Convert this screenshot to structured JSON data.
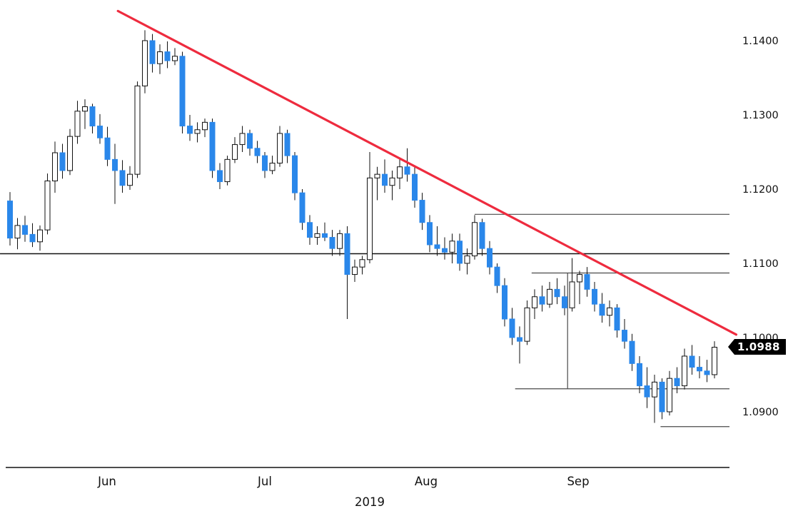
{
  "chart_data": {
    "type": "candlestick",
    "grid": false,
    "legend": false,
    "x_axis": {
      "year_label": "2019",
      "month_ticks": [
        {
          "label": "Jun",
          "index": 13
        },
        {
          "label": "Jul",
          "index": 34
        },
        {
          "label": "Aug",
          "index": 55.5
        },
        {
          "label": "Sep",
          "index": 75.8
        }
      ]
    },
    "y_axis": {
      "tick_labels": [
        "1.1400",
        "1.1300",
        "1.1200",
        "1.1100",
        "1.1000",
        "1.0900"
      ],
      "tick_prices": [
        1.14,
        1.13,
        1.12,
        1.11,
        1.1,
        1.09
      ],
      "range": [
        1.0845,
        1.1455
      ],
      "side": "right"
    },
    "last_price_tag": {
      "text": "1.0988",
      "price": 1.0988
    },
    "candles": {
      "format": [
        "open",
        "high",
        "low",
        "close"
      ],
      "ohlc": [
        [
          1.1185,
          1.1197,
          1.1125,
          1.1135
        ],
        [
          1.1135,
          1.1162,
          1.112,
          1.1152
        ],
        [
          1.1152,
          1.1165,
          1.113,
          1.114
        ],
        [
          1.114,
          1.1155,
          1.1123,
          1.113
        ],
        [
          1.113,
          1.1152,
          1.1118,
          1.1146
        ],
        [
          1.1146,
          1.1222,
          1.114,
          1.1212
        ],
        [
          1.1212,
          1.1265,
          1.1196,
          1.125
        ],
        [
          1.125,
          1.1262,
          1.1215,
          1.1226
        ],
        [
          1.1226,
          1.1282,
          1.122,
          1.1272
        ],
        [
          1.1272,
          1.132,
          1.1262,
          1.1306
        ],
        [
          1.1306,
          1.1322,
          1.1282,
          1.1312
        ],
        [
          1.1312,
          1.1316,
          1.1276,
          1.1286
        ],
        [
          1.1286,
          1.1302,
          1.1262,
          1.127
        ],
        [
          1.127,
          1.1285,
          1.1232,
          1.1241
        ],
        [
          1.1241,
          1.1262,
          1.1181,
          1.1226
        ],
        [
          1.1226,
          1.124,
          1.1196,
          1.1206
        ],
        [
          1.1206,
          1.1232,
          1.12,
          1.1221
        ],
        [
          1.1221,
          1.1346,
          1.1216,
          1.134
        ],
        [
          1.134,
          1.1415,
          1.133,
          1.1401
        ],
        [
          1.1401,
          1.141,
          1.1358,
          1.137
        ],
        [
          1.137,
          1.1396,
          1.1356,
          1.1386
        ],
        [
          1.1386,
          1.14,
          1.1364,
          1.1374
        ],
        [
          1.1374,
          1.1391,
          1.1368,
          1.138
        ],
        [
          1.138,
          1.1386,
          1.1276,
          1.1286
        ],
        [
          1.1286,
          1.1301,
          1.1266,
          1.1276
        ],
        [
          1.1276,
          1.1291,
          1.1264,
          1.1281
        ],
        [
          1.1281,
          1.1296,
          1.1271,
          1.1291
        ],
        [
          1.1291,
          1.1296,
          1.1216,
          1.1226
        ],
        [
          1.1226,
          1.1236,
          1.1201,
          1.1211
        ],
        [
          1.1211,
          1.1246,
          1.1206,
          1.1241
        ],
        [
          1.1241,
          1.1271,
          1.1236,
          1.1261
        ],
        [
          1.1261,
          1.1286,
          1.1251,
          1.1276
        ],
        [
          1.1276,
          1.1281,
          1.1246,
          1.1256
        ],
        [
          1.1256,
          1.1266,
          1.1236,
          1.1246
        ],
        [
          1.1246,
          1.1251,
          1.1216,
          1.1226
        ],
        [
          1.1226,
          1.1246,
          1.1221,
          1.1236
        ],
        [
          1.1236,
          1.1286,
          1.1231,
          1.1276
        ],
        [
          1.1276,
          1.1281,
          1.1236,
          1.1246
        ],
        [
          1.1246,
          1.1251,
          1.1186,
          1.1196
        ],
        [
          1.1196,
          1.1201,
          1.1146,
          1.1156
        ],
        [
          1.1156,
          1.1166,
          1.1126,
          1.1136
        ],
        [
          1.1136,
          1.1151,
          1.1126,
          1.1141
        ],
        [
          1.1141,
          1.1156,
          1.1131,
          1.1136
        ],
        [
          1.1136,
          1.1146,
          1.1111,
          1.1121
        ],
        [
          1.1121,
          1.1146,
          1.1111,
          1.1141
        ],
        [
          1.1141,
          1.1151,
          1.1026,
          1.1086
        ],
        [
          1.1086,
          1.1106,
          1.1076,
          1.1096
        ],
        [
          1.1096,
          1.1111,
          1.1086,
          1.1106
        ],
        [
          1.1106,
          1.1251,
          1.1101,
          1.1216
        ],
        [
          1.1216,
          1.1231,
          1.1186,
          1.1221
        ],
        [
          1.1221,
          1.1241,
          1.1196,
          1.1206
        ],
        [
          1.1206,
          1.1226,
          1.1186,
          1.1216
        ],
        [
          1.1216,
          1.1241,
          1.1201,
          1.1231
        ],
        [
          1.1231,
          1.1256,
          1.1211,
          1.1221
        ],
        [
          1.1221,
          1.1231,
          1.1176,
          1.1186
        ],
        [
          1.1186,
          1.1196,
          1.1146,
          1.1156
        ],
        [
          1.1156,
          1.1166,
          1.1116,
          1.1126
        ],
        [
          1.1126,
          1.1151,
          1.1111,
          1.1121
        ],
        [
          1.1121,
          1.1136,
          1.1106,
          1.1116
        ],
        [
          1.1116,
          1.1141,
          1.1101,
          1.1131
        ],
        [
          1.1131,
          1.1141,
          1.1091,
          1.1101
        ],
        [
          1.1101,
          1.1121,
          1.1086,
          1.1111
        ],
        [
          1.1111,
          1.1166,
          1.1106,
          1.1156
        ],
        [
          1.1156,
          1.1161,
          1.1111,
          1.1121
        ],
        [
          1.1121,
          1.1131,
          1.1086,
          1.1096
        ],
        [
          1.1096,
          1.1101,
          1.1061,
          1.1071
        ],
        [
          1.1071,
          1.1081,
          1.1016,
          1.1026
        ],
        [
          1.1026,
          1.1041,
          1.0991,
          1.1001
        ],
        [
          1.1001,
          1.1016,
          1.0966,
          1.0996
        ],
        [
          1.0996,
          1.1051,
          1.0991,
          1.1041
        ],
        [
          1.1041,
          1.1066,
          1.1026,
          1.1056
        ],
        [
          1.1056,
          1.1071,
          1.1036,
          1.1046
        ],
        [
          1.1046,
          1.1076,
          1.1041,
          1.1066
        ],
        [
          1.1066,
          1.1081,
          1.1046,
          1.1056
        ],
        [
          1.1056,
          1.1071,
          1.1031,
          1.1041
        ],
        [
          1.1041,
          1.1108,
          1.1036,
          1.1076
        ],
        [
          1.1076,
          1.1091,
          1.1046,
          1.1086
        ],
        [
          1.1086,
          1.1096,
          1.1056,
          1.1066
        ],
        [
          1.1066,
          1.1076,
          1.1036,
          1.1046
        ],
        [
          1.1046,
          1.1061,
          1.1021,
          1.1031
        ],
        [
          1.1031,
          1.1051,
          1.1016,
          1.1041
        ],
        [
          1.1041,
          1.1046,
          1.1001,
          1.1011
        ],
        [
          1.1011,
          1.1026,
          1.0986,
          1.0996
        ],
        [
          1.0996,
          1.1006,
          1.0956,
          1.0966
        ],
        [
          1.0966,
          1.0976,
          1.0926,
          1.0936
        ],
        [
          1.0936,
          1.0961,
          1.0906,
          1.0921
        ],
        [
          1.0921,
          1.0951,
          1.0886,
          1.0941
        ],
        [
          1.0941,
          1.0946,
          1.0891,
          1.0901
        ],
        [
          1.0901,
          1.0956,
          1.0896,
          1.0946
        ],
        [
          1.0946,
          1.0961,
          1.0926,
          1.0936
        ],
        [
          1.0936,
          1.0986,
          1.0931,
          1.0976
        ],
        [
          1.0976,
          1.0991,
          1.0951,
          1.0961
        ],
        [
          1.0961,
          1.0976,
          1.0946,
          1.0956
        ],
        [
          1.0956,
          1.0971,
          1.0941,
          1.0951
        ],
        [
          1.0951,
          1.0996,
          1.0946,
          1.0988
        ]
      ]
    },
    "annotations": {
      "trendline": {
        "from": {
          "index": 14.4,
          "price": 1.1441
        },
        "to": {
          "index": 96.9,
          "price": 1.1005
        }
      },
      "h_levels": [
        {
          "price": 1.1114,
          "from_index": -1.33,
          "to_index": 96.0,
          "full_width": true
        },
        {
          "price": 1.1167,
          "from_index": 62.0,
          "to_index": 96.0,
          "full_width": false
        },
        {
          "price": 1.1088,
          "from_index": 69.6,
          "to_index": 96.0,
          "full_width": false
        },
        {
          "price": 1.0932,
          "from_index": 67.4,
          "to_index": 96.0,
          "full_width": false
        },
        {
          "price": 1.0881,
          "from_index": 86.8,
          "to_index": 96.0,
          "full_width": false
        }
      ],
      "v_level": {
        "index": 74.4,
        "from_price": 1.1088,
        "to_price": 1.0932
      }
    },
    "colors": {
      "background": "#ffffff",
      "up_fill": "#ffffff",
      "up_stroke": "#111111",
      "down_fill": "#2a87ea",
      "down_stroke": "#2a87ea",
      "wick": "#111111",
      "trendline": "#ee2b3e",
      "level_line": "#4a4a4a",
      "major_level": "#111111",
      "axis": "#111111",
      "price_tag_bg": "#000000",
      "price_tag_text": "#ffffff",
      "label_text": "#111111"
    }
  }
}
